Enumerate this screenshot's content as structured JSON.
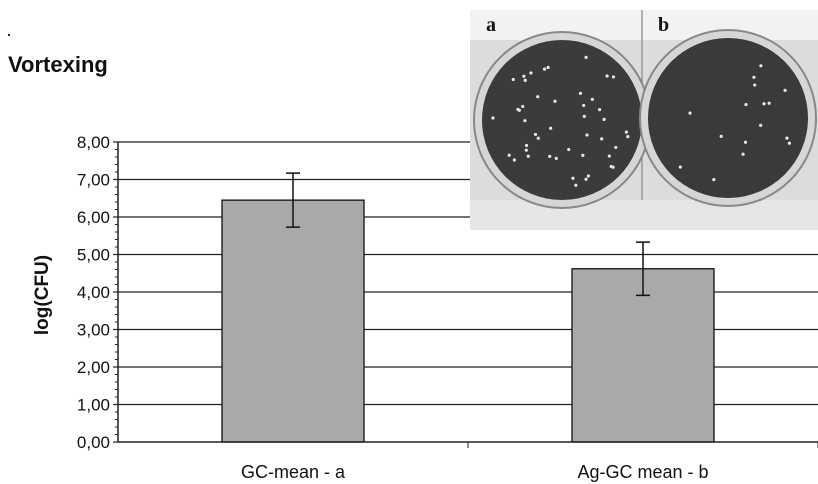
{
  "chart_data": {
    "type": "bar",
    "title": "Vortexing",
    "ylabel": "log(CFU)",
    "xlabel": "",
    "ylim": [
      0,
      8
    ],
    "yticks": [
      "0,00",
      "1,00",
      "2,00",
      "3,00",
      "4,00",
      "5,00",
      "6,00",
      "7,00",
      "8,00"
    ],
    "grid": true,
    "categories": [
      "GC-mean - a",
      "Ag-GC mean - b"
    ],
    "values": [
      6.45,
      4.62
    ],
    "error": [
      0.72,
      0.71
    ],
    "bar_color": "#a9a9a9"
  },
  "inset": {
    "labels": [
      "a",
      "b"
    ]
  }
}
